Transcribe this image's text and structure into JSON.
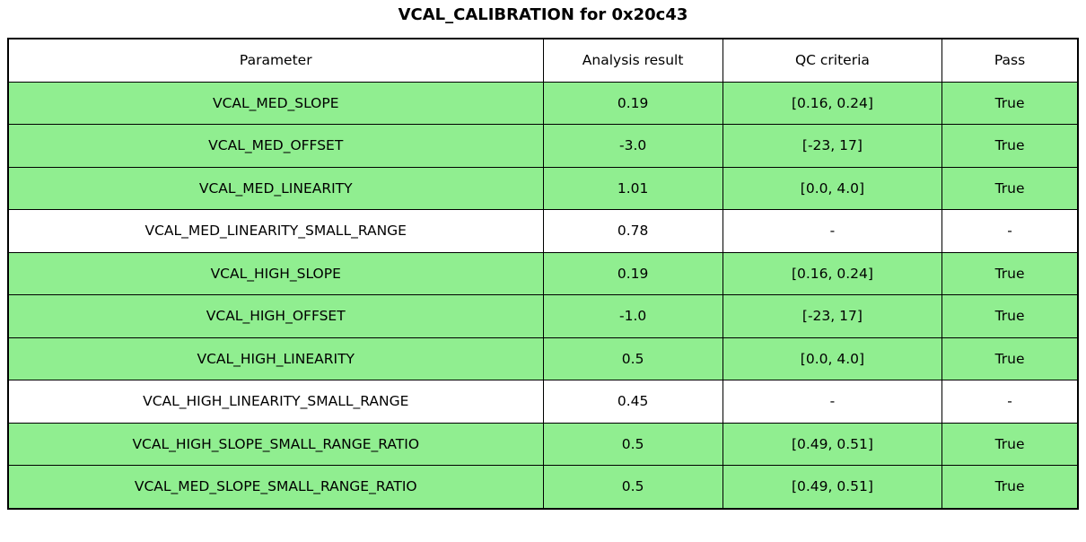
{
  "title": "VCAL_CALIBRATION for 0x20c43",
  "colors": {
    "pass_row_bg": "#90EE90",
    "neutral_row_bg": "#FFFFFF",
    "border": "#000000",
    "text": "#000000"
  },
  "chart_data": {
    "type": "table",
    "title": "VCAL_CALIBRATION for 0x20c43",
    "columns": [
      "Parameter",
      "Analysis result",
      "QC criteria",
      "Pass"
    ],
    "rows": [
      {
        "parameter": "VCAL_MED_SLOPE",
        "analysis_result": "0.19",
        "qc_criteria": "[0.16, 0.24]",
        "pass": "True",
        "row_color": "green"
      },
      {
        "parameter": "VCAL_MED_OFFSET",
        "analysis_result": "-3.0",
        "qc_criteria": "[-23, 17]",
        "pass": "True",
        "row_color": "green"
      },
      {
        "parameter": "VCAL_MED_LINEARITY",
        "analysis_result": "1.01",
        "qc_criteria": "[0.0, 4.0]",
        "pass": "True",
        "row_color": "green"
      },
      {
        "parameter": "VCAL_MED_LINEARITY_SMALL_RANGE",
        "analysis_result": "0.78",
        "qc_criteria": "-",
        "pass": "-",
        "row_color": "white"
      },
      {
        "parameter": "VCAL_HIGH_SLOPE",
        "analysis_result": "0.19",
        "qc_criteria": "[0.16, 0.24]",
        "pass": "True",
        "row_color": "green"
      },
      {
        "parameter": "VCAL_HIGH_OFFSET",
        "analysis_result": "-1.0",
        "qc_criteria": "[-23, 17]",
        "pass": "True",
        "row_color": "green"
      },
      {
        "parameter": "VCAL_HIGH_LINEARITY",
        "analysis_result": "0.5",
        "qc_criteria": "[0.0, 4.0]",
        "pass": "True",
        "row_color": "green"
      },
      {
        "parameter": "VCAL_HIGH_LINEARITY_SMALL_RANGE",
        "analysis_result": "0.45",
        "qc_criteria": "-",
        "pass": "-",
        "row_color": "white"
      },
      {
        "parameter": "VCAL_HIGH_SLOPE_SMALL_RANGE_RATIO",
        "analysis_result": "0.5",
        "qc_criteria": "[0.49, 0.51]",
        "pass": "True",
        "row_color": "green"
      },
      {
        "parameter": "VCAL_MED_SLOPE_SMALL_RANGE_RATIO",
        "analysis_result": "0.5",
        "qc_criteria": "[0.49, 0.51]",
        "pass": "True",
        "row_color": "green"
      }
    ]
  }
}
